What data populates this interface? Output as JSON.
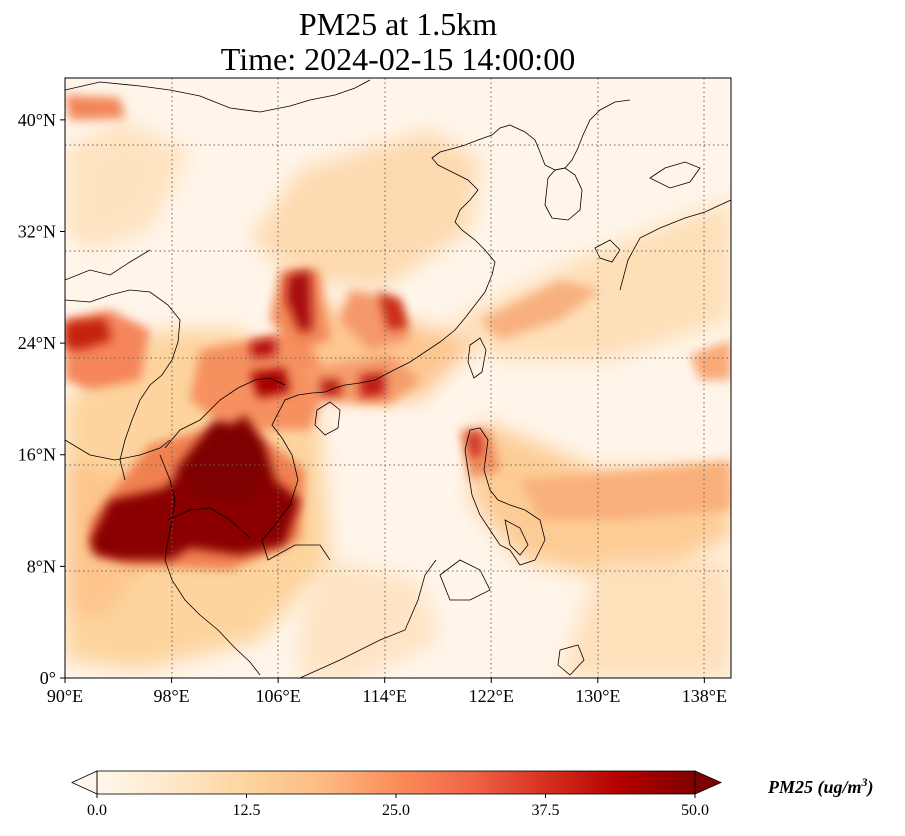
{
  "title": {
    "line1": "PM25 at 1.5km",
    "line2": "Time: 2024-02-15 14:00:00"
  },
  "map": {
    "projection": "PlateCarree",
    "lon_range": [
      90,
      140
    ],
    "lat_range": [
      0,
      43
    ],
    "gridlines": "dotted",
    "x_ticks": [
      {
        "lon": 90,
        "label": "90°E"
      },
      {
        "lon": 98,
        "label": "98°E"
      },
      {
        "lon": 106,
        "label": "106°E"
      },
      {
        "lon": 114,
        "label": "114°E"
      },
      {
        "lon": 122,
        "label": "122°E"
      },
      {
        "lon": 130,
        "label": "130°E"
      },
      {
        "lon": 138,
        "label": "138°E"
      }
    ],
    "y_ticks": [
      {
        "lat": 0,
        "label": "0°"
      },
      {
        "lat": 8,
        "label": "8°N"
      },
      {
        "lat": 16,
        "label": "16°N"
      },
      {
        "lat": 24,
        "label": "24°N"
      },
      {
        "lat": 32,
        "label": "32°N"
      },
      {
        "lat": 40,
        "label": "40°N"
      }
    ]
  },
  "colorbar": {
    "label_main": "PM25 (ug/m",
    "label_sup": "3",
    "label_end": ")",
    "range": [
      0,
      50
    ],
    "extend": "both",
    "colormap": "OrRd",
    "colors": [
      "#fff7ec",
      "#fee8c8",
      "#fdd49e",
      "#fdbb84",
      "#fc8d59",
      "#ef6548",
      "#d7301f",
      "#b30000",
      "#7f0000"
    ],
    "ticks": [
      {
        "value": 0,
        "label": "0.0"
      },
      {
        "value": 12.5,
        "label": "12.5"
      },
      {
        "value": 25,
        "label": "25.0"
      },
      {
        "value": 37.5,
        "label": "37.5"
      },
      {
        "value": 50,
        "label": "50.0"
      }
    ]
  },
  "concentration_field": [
    {
      "region": "Indochina core",
      "lon": 102,
      "lat": 15,
      "value": 50
    },
    {
      "region": "Myanmar south",
      "lon": 95,
      "lat": 11,
      "value": 50
    },
    {
      "region": "Thailand east",
      "lon": 104,
      "lat": 12,
      "value": 48
    },
    {
      "region": "Myanmar west",
      "lon": 91,
      "lat": 26,
      "value": 40
    },
    {
      "region": "Sichuan basin",
      "lon": 107.5,
      "lat": 29,
      "value": 45
    },
    {
      "region": "Guangxi",
      "lon": 105,
      "lat": 22.5,
      "value": 42
    },
    {
      "region": "Guangdong",
      "lon": 113,
      "lat": 22.5,
      "value": 38
    },
    {
      "region": "Fujian coast",
      "lon": 117.5,
      "lat": 21.5,
      "value": 40
    },
    {
      "region": "Central China",
      "lon": 112,
      "lat": 27.5,
      "value": 30
    },
    {
      "region": "Luzon",
      "lon": 121,
      "lat": 17,
      "value": 38
    },
    {
      "region": "Philippine Sea",
      "lon": 132,
      "lat": 14,
      "value": 20
    },
    {
      "region": "Northwest Pacific",
      "lon": 128,
      "lat": 27,
      "value": 18
    },
    {
      "region": "Mongolia",
      "lon": 93,
      "lat": 42.5,
      "value": 25
    }
  ]
}
